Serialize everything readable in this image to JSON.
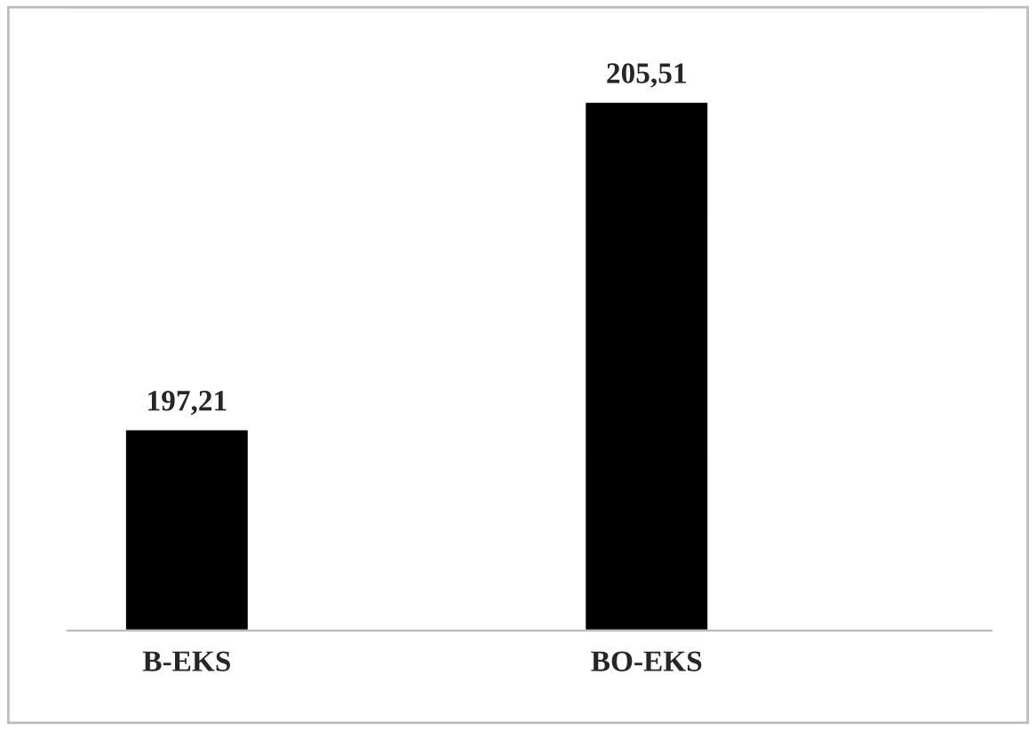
{
  "chart_data": {
    "type": "bar",
    "categories": [
      "B-EKS",
      "BO-EKS"
    ],
    "values": [
      197.21,
      205.51
    ],
    "value_labels": [
      "197,21",
      "205,51"
    ],
    "color": "#000000",
    "ylim": [
      192.1,
      207.9
    ],
    "tick_labels": "x",
    "grid": false,
    "legend": false
  }
}
